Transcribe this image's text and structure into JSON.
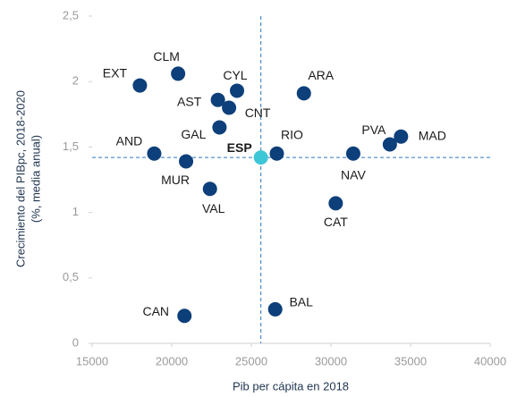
{
  "chart_data": {
    "type": "scatter",
    "x_label": "Pib per cápita en 2018",
    "y_label": [
      "Crecimiento del PIBpc, 2018-2020",
      "(%, media anual)"
    ],
    "xlim": [
      15000,
      40000
    ],
    "xticks": [
      15000,
      20000,
      25000,
      30000,
      35000,
      40000
    ],
    "ylim": [
      0,
      2.5
    ],
    "yticks": [
      0,
      {
        "value": 0.5,
        "label": "0,5"
      },
      1,
      {
        "value": 1.5,
        "label": "1,5"
      },
      2,
      {
        "value": 2.5,
        "label": "2,5"
      }
    ],
    "points": [
      {
        "label": "EXT",
        "x": 18000,
        "y": 1.97,
        "color": "#0d3f7a"
      },
      {
        "label": "CLM",
        "x": 20400,
        "y": 2.06,
        "color": "#0d3f7a"
      },
      {
        "label": "CYL",
        "x": 24100,
        "y": 1.93,
        "color": "#0d3f7a"
      },
      {
        "label": "ARA",
        "x": 28300,
        "y": 1.91,
        "color": "#0d3f7a"
      },
      {
        "label": "AST",
        "x": 22900,
        "y": 1.86,
        "color": "#0d3f7a"
      },
      {
        "label": "CNT",
        "x": 23600,
        "y": 1.8,
        "color": "#0d3f7a"
      },
      {
        "label": "GAL",
        "x": 23000,
        "y": 1.65,
        "color": "#0d3f7a"
      },
      {
        "label": "AND",
        "x": 18900,
        "y": 1.45,
        "color": "#0d3f7a"
      },
      {
        "label": "MUR",
        "x": 20900,
        "y": 1.39,
        "color": "#0d3f7a"
      },
      {
        "label": "VAL",
        "x": 22400,
        "y": 1.18,
        "color": "#0d3f7a"
      },
      {
        "label": "ESP",
        "x": 25600,
        "y": 1.42,
        "color": "#3cc6d6",
        "font_weight": "bold",
        "reference_lines": true
      },
      {
        "label": "RIO",
        "x": 26600,
        "y": 1.45,
        "color": "#0d3f7a"
      },
      {
        "label": "NAV",
        "x": 31400,
        "y": 1.45,
        "color": "#0d3f7a"
      },
      {
        "label": "PVA",
        "x": 33700,
        "y": 1.52,
        "color": "#0d3f7a"
      },
      {
        "label": "MAD",
        "x": 34400,
        "y": 1.58,
        "color": "#0d3f7a"
      },
      {
        "label": "CAT",
        "x": 30300,
        "y": 1.07,
        "color": "#0d3f7a"
      },
      {
        "label": "CAN",
        "x": 20800,
        "y": 0.21,
        "color": "#0d3f7a"
      },
      {
        "label": "BAL",
        "x": 26500,
        "y": 0.26,
        "color": "#0d3f7a"
      }
    ]
  }
}
